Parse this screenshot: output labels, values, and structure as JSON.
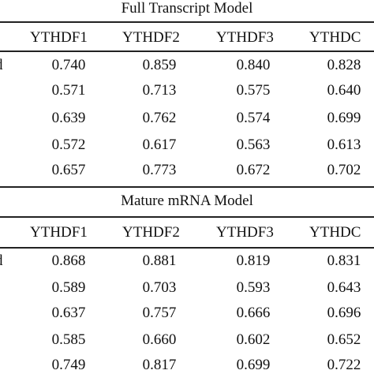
{
  "panels": [
    {
      "title": "Full Transcript Model",
      "headers": [
        "YTHDF1",
        "YTHDF2",
        "YTHDF3",
        "YTHDC"
      ],
      "first_row_label_fragment": "d",
      "rows": [
        [
          "0.740",
          "0.859",
          "0.840",
          "0.828"
        ],
        [
          "0.571",
          "0.713",
          "0.575",
          "0.640"
        ],
        [
          "0.639",
          "0.762",
          "0.574",
          "0.699"
        ],
        [
          "0.572",
          "0.617",
          "0.563",
          "0.613"
        ],
        [
          "0.657",
          "0.773",
          "0.672",
          "0.702"
        ]
      ]
    },
    {
      "title": "Mature mRNA Model",
      "headers": [
        "YTHDF1",
        "YTHDF2",
        "YTHDF3",
        "YTHDC"
      ],
      "first_row_label_fragment": "d",
      "rows": [
        [
          "0.868",
          "0.881",
          "0.819",
          "0.831"
        ],
        [
          "0.589",
          "0.703",
          "0.593",
          "0.643"
        ],
        [
          "0.637",
          "0.757",
          "0.666",
          "0.696"
        ],
        [
          "0.585",
          "0.660",
          "0.602",
          "0.652"
        ],
        [
          "0.749",
          "0.817",
          "0.699",
          "0.722"
        ]
      ]
    }
  ]
}
